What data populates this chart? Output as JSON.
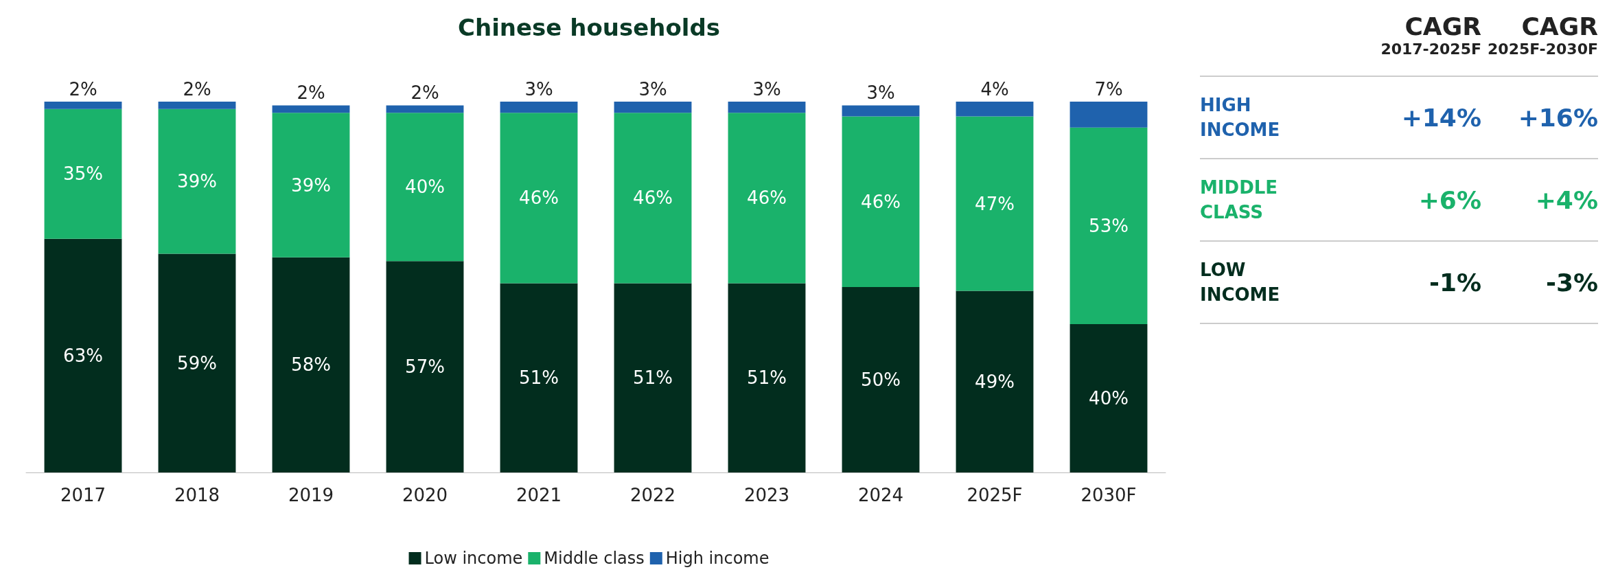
{
  "chart_data": [
    {
      "type": "bar",
      "title": "Chinese households",
      "categories": [
        "2017",
        "2018",
        "2019",
        "2020",
        "2021",
        "2022",
        "2023",
        "2024",
        "2025F",
        "2030F"
      ],
      "stacked": true,
      "ylim": [
        0,
        100
      ],
      "tick_labels": "x",
      "legend": "bottom",
      "series": [
        {
          "name": "Low income",
          "color": "#022d1e",
          "values": [
            63,
            59,
            58,
            57,
            51,
            51,
            51,
            50,
            49,
            40
          ],
          "value_labels": [
            "63%",
            "59%",
            "58%",
            "57%",
            "51%",
            "51%",
            "51%",
            "50%",
            "49%",
            "40%"
          ]
        },
        {
          "name": "Middle class",
          "color": "#1ab26b",
          "values": [
            35,
            39,
            39,
            40,
            46,
            46,
            46,
            46,
            47,
            53
          ],
          "value_labels": [
            "35%",
            "39%",
            "39%",
            "40%",
            "46%",
            "46%",
            "46%",
            "46%",
            "47%",
            "53%"
          ]
        },
        {
          "name": "High income",
          "color": "#1f62ad",
          "values": [
            2,
            2,
            2,
            2,
            3,
            3,
            3,
            3,
            4,
            7
          ],
          "value_labels": [
            "2%",
            "2%",
            "2%",
            "2%",
            "3%",
            "3%",
            "3%",
            "3%",
            "4%",
            "7%"
          ]
        }
      ]
    },
    {
      "type": "other",
      "colors": [
        "#1f62ad",
        "#1ab26b",
        "#022d1e"
      ],
      "annotations": [
        "CAGR",
        "2017-2025F",
        "CAGR",
        "2025F-2030F",
        "HIGH INCOME",
        "+14%",
        "+16%",
        "MIDDLE CLASS",
        "+6%",
        "+4%",
        "LOW INCOME",
        "-1%",
        "-3%"
      ]
    }
  ]
}
